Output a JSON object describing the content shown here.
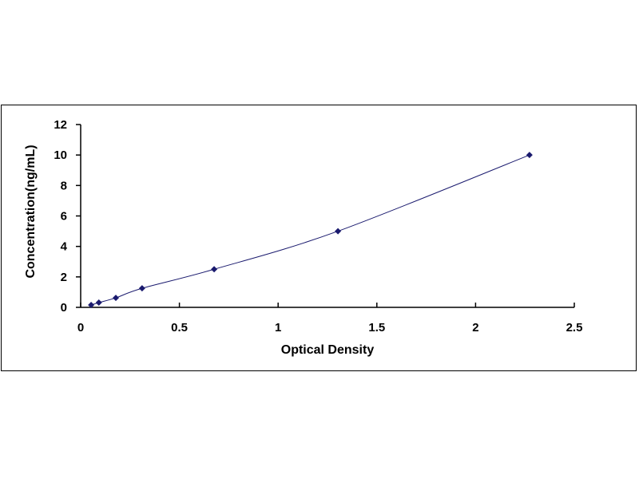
{
  "chart_data": {
    "type": "scatter",
    "title": "",
    "xlabel": "Optical Density",
    "ylabel": "Concentration(ng/mL)",
    "xlim": [
      0,
      2.5
    ],
    "ylim": [
      0,
      12
    ],
    "xticks": [
      "0",
      "0.5",
      "1",
      "1.5",
      "2",
      "2.5"
    ],
    "yticks": [
      "0",
      "2",
      "4",
      "6",
      "8",
      "10",
      "12"
    ],
    "grid": false,
    "legend": "none",
    "series": [
      {
        "x": [
          0.053,
          0.092,
          0.178,
          0.311,
          0.676,
          1.303,
          2.273
        ],
        "y": [
          0.156,
          0.312,
          0.625,
          1.25,
          2.5,
          5,
          10
        ],
        "marker": "diamond",
        "color": "#1a1a6e",
        "trendline": "smooth curve"
      }
    ]
  }
}
